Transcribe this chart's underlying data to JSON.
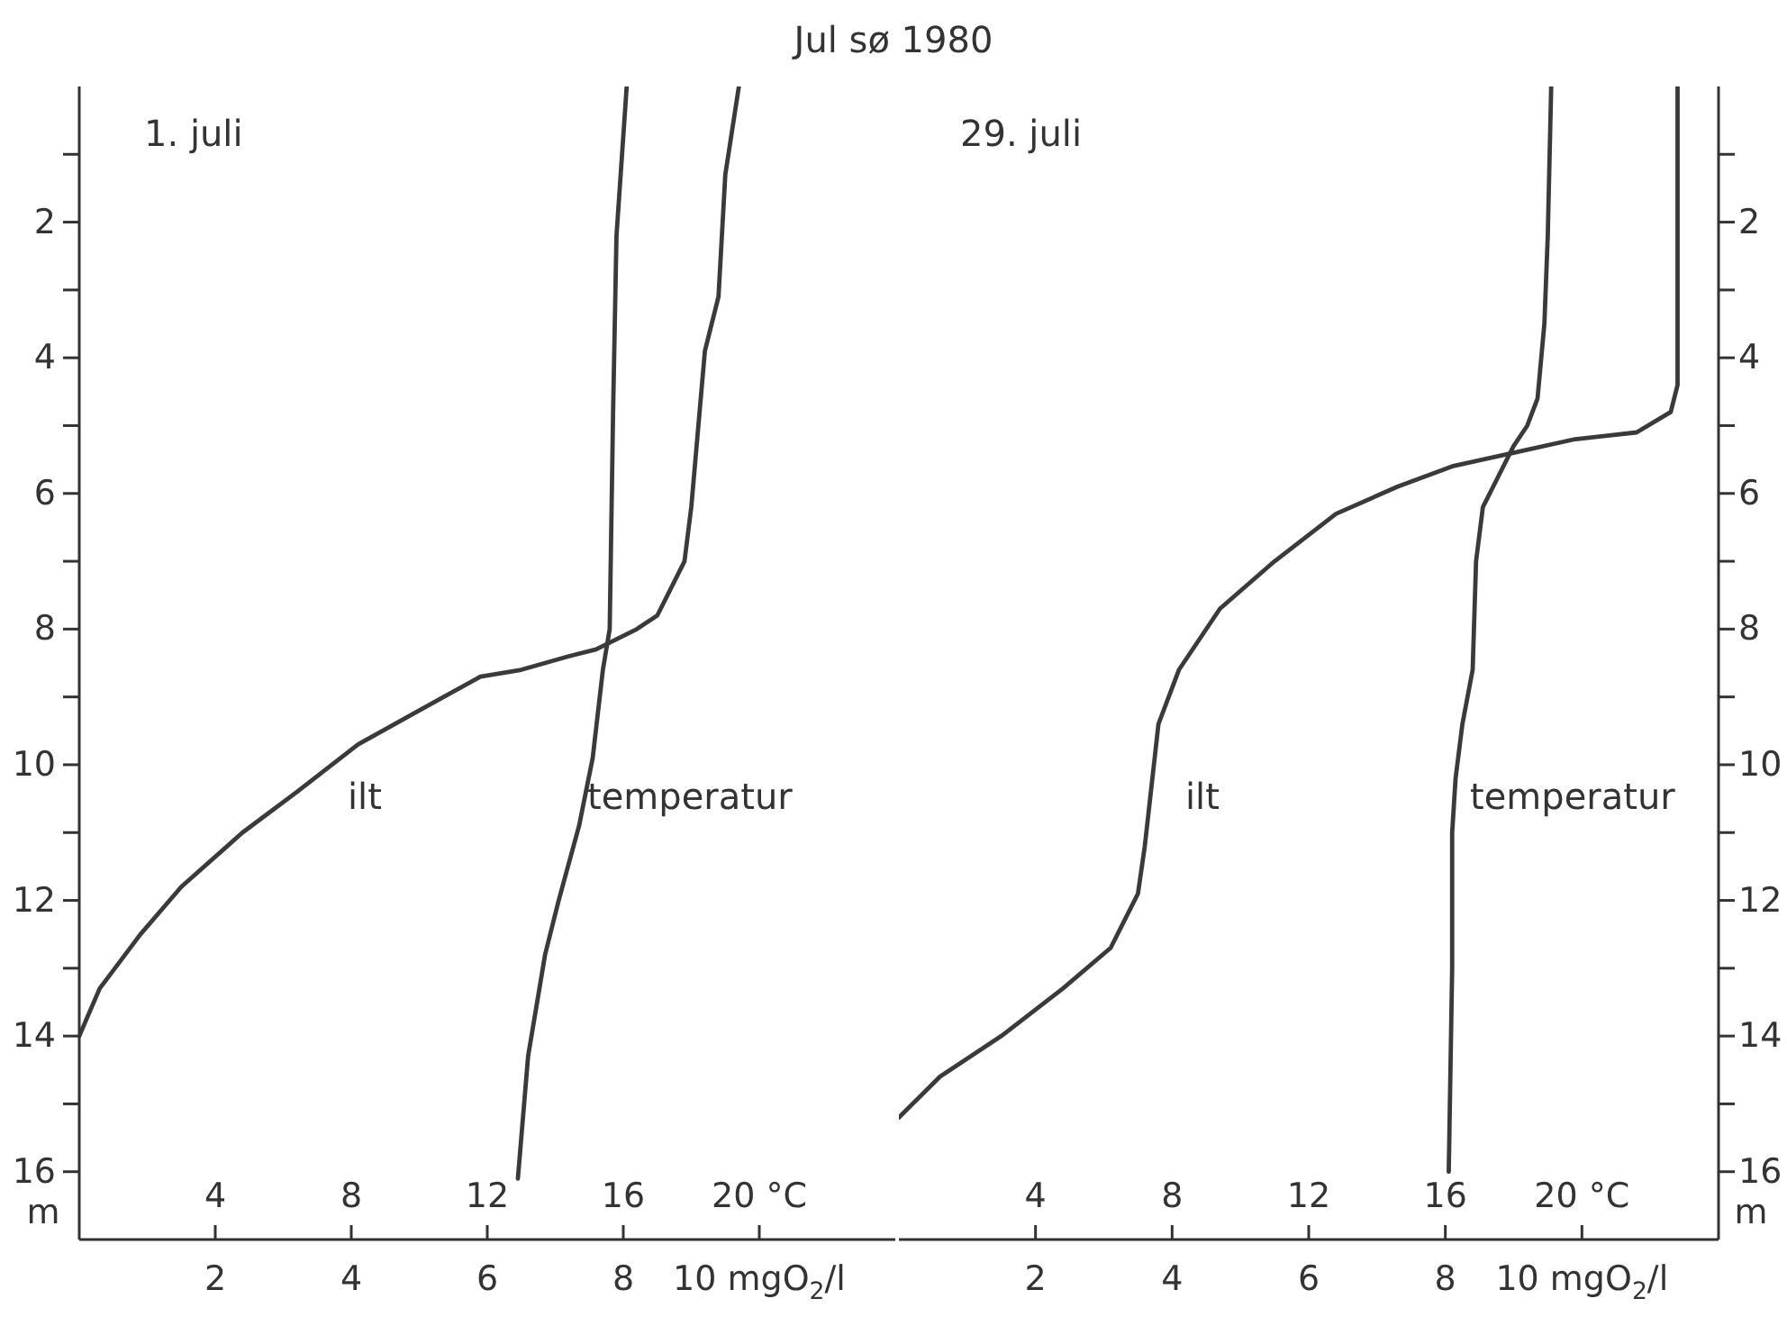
{
  "chart_data": [
    {
      "type": "line",
      "title": "Jul sø 1980",
      "annotations": [
        "1. juli"
      ],
      "ylabel": "m",
      "xlim": [
        0,
        12
      ],
      "xticks": [
        2,
        4,
        6,
        8,
        {
          "value": 10,
          "label": "10 mgO$_{2}$/l"
        }
      ],
      "x2lim": [
        0,
        24
      ],
      "x2ticks": [
        4,
        8,
        12,
        16,
        {
          "value": 20,
          "label": "20 °C"
        }
      ],
      "ylim": [
        17,
        0
      ],
      "yticks": [
        {
          "value": 1,
          "label": null
        },
        2,
        {
          "value": 3,
          "label": null
        },
        4,
        {
          "value": 5,
          "label": null
        },
        6,
        {
          "value": 7,
          "label": null
        },
        8,
        {
          "value": 9,
          "label": null
        },
        10,
        {
          "value": 11,
          "label": null
        },
        12,
        {
          "value": 13,
          "label": null
        },
        14,
        {
          "value": 15,
          "label": null
        },
        16
      ],
      "series": [
        {
          "name": "ilt",
          "color": "#3a3a3a",
          "x": [
            9.7,
            9.5,
            9.4,
            9.2,
            9.0,
            8.9,
            8.5,
            8.2,
            7.6,
            7.2,
            6.5,
            5.9,
            5.0,
            4.1,
            3.2,
            2.4,
            1.5,
            0.9,
            0.3,
            0
          ],
          "values": [
            0,
            1.3,
            3.1,
            3.9,
            6.2,
            7.0,
            7.8,
            8.0,
            8.3,
            8.4,
            8.6,
            8.7,
            9.2,
            9.7,
            10.4,
            11.0,
            11.8,
            12.5,
            13.3,
            14.0
          ]
        },
        {
          "name": "temperatur",
          "color": "#3a3a3a",
          "axis": "x2",
          "x": [
            16.1,
            15.8,
            15.7,
            15.6,
            15.4,
            15.1,
            14.7,
            14.1,
            13.7,
            13.2,
            12.9
          ],
          "values": [
            0,
            2.2,
            4.8,
            8.0,
            8.6,
            9.9,
            10.9,
            12.0,
            12.8,
            14.3,
            16.1
          ]
        }
      ]
    },
    {
      "type": "line",
      "annotations": [
        "29. juli"
      ],
      "ylabel": "m",
      "xlim": [
        0,
        12
      ],
      "xticks": [
        2,
        4,
        6,
        8,
        {
          "value": 10,
          "label": "10 mgO$_{2}$/l"
        }
      ],
      "x2lim": [
        0,
        24
      ],
      "x2ticks": [
        4,
        8,
        12,
        16,
        {
          "value": 20,
          "label": "20 °C"
        }
      ],
      "ylim": [
        17,
        0
      ],
      "yticks": [
        {
          "value": 1,
          "label": null
        },
        2,
        {
          "value": 3,
          "label": null
        },
        4,
        {
          "value": 5,
          "label": null
        },
        6,
        {
          "value": 7,
          "label": null
        },
        8,
        {
          "value": 9,
          "label": null
        },
        10,
        {
          "value": 11,
          "label": null
        },
        12,
        {
          "value": 13,
          "label": null
        },
        14,
        {
          "value": 15,
          "label": null
        },
        16
      ],
      "series": [
        {
          "name": "ilt",
          "color": "#3a3a3a",
          "x": [
            11.4,
            11.4,
            11.3,
            10.8,
            9.9,
            9.0,
            8.1,
            7.3,
            6.4,
            5.5,
            4.7,
            4.1,
            3.8,
            3.7,
            3.6,
            3.5,
            3.1,
            2.4,
            1.5,
            0.6,
            0
          ],
          "values": [
            0,
            4.4,
            4.8,
            5.1,
            5.2,
            5.4,
            5.6,
            5.9,
            6.3,
            7.0,
            7.7,
            8.6,
            9.4,
            10.3,
            11.2,
            11.9,
            12.7,
            13.3,
            14.0,
            14.6,
            15.2
          ]
        },
        {
          "name": "temperatur",
          "color": "#3a3a3a",
          "axis": "x2",
          "x": [
            19.1,
            19.0,
            18.9,
            18.7,
            18.4,
            18.0,
            17.5,
            17.1,
            16.9,
            16.8,
            16.5,
            16.3,
            16.2,
            16.2,
            16.1
          ],
          "values": [
            0,
            2.2,
            3.5,
            4.6,
            5.0,
            5.3,
            5.8,
            6.2,
            7.0,
            8.6,
            9.4,
            10.2,
            11.0,
            13.0,
            16.0
          ]
        }
      ]
    }
  ]
}
